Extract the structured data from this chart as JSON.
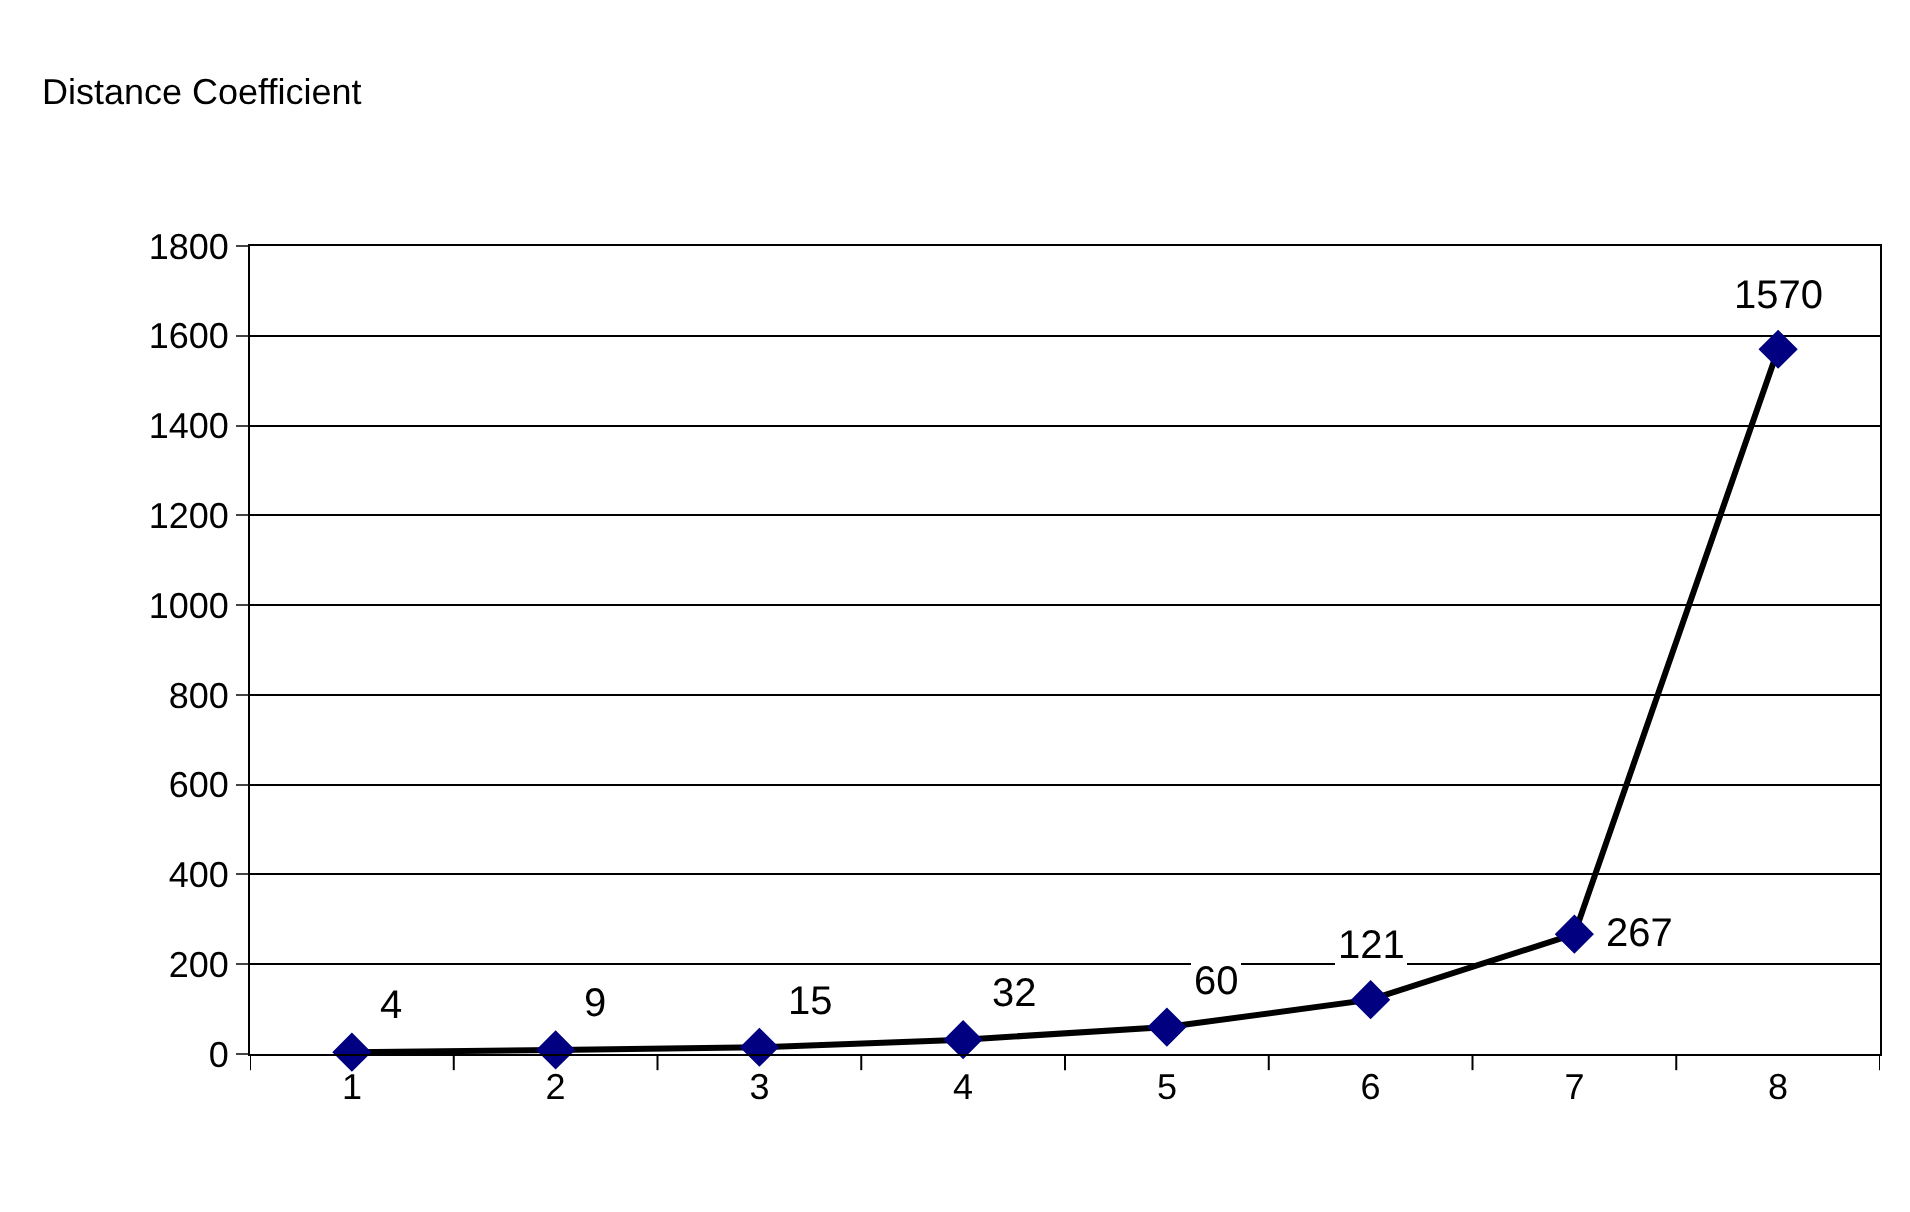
{
  "chart_data": {
    "type": "line",
    "ylabel": "Distance Coefficient",
    "categories": [
      "1",
      "2",
      "3",
      "4",
      "5",
      "6",
      "7",
      "8"
    ],
    "series": [
      {
        "color": "#000080",
        "values": [
          4,
          9,
          15,
          32,
          60,
          121,
          267,
          1570
        ]
      }
    ],
    "ylim": [
      0,
      1800
    ],
    "yticks": [
      0,
      200,
      400,
      600,
      800,
      1000,
      1200,
      1400,
      1600,
      1800
    ],
    "grid": "y",
    "legend": false,
    "marker": "diamond",
    "line_style": "solid",
    "data_labels": true
  }
}
